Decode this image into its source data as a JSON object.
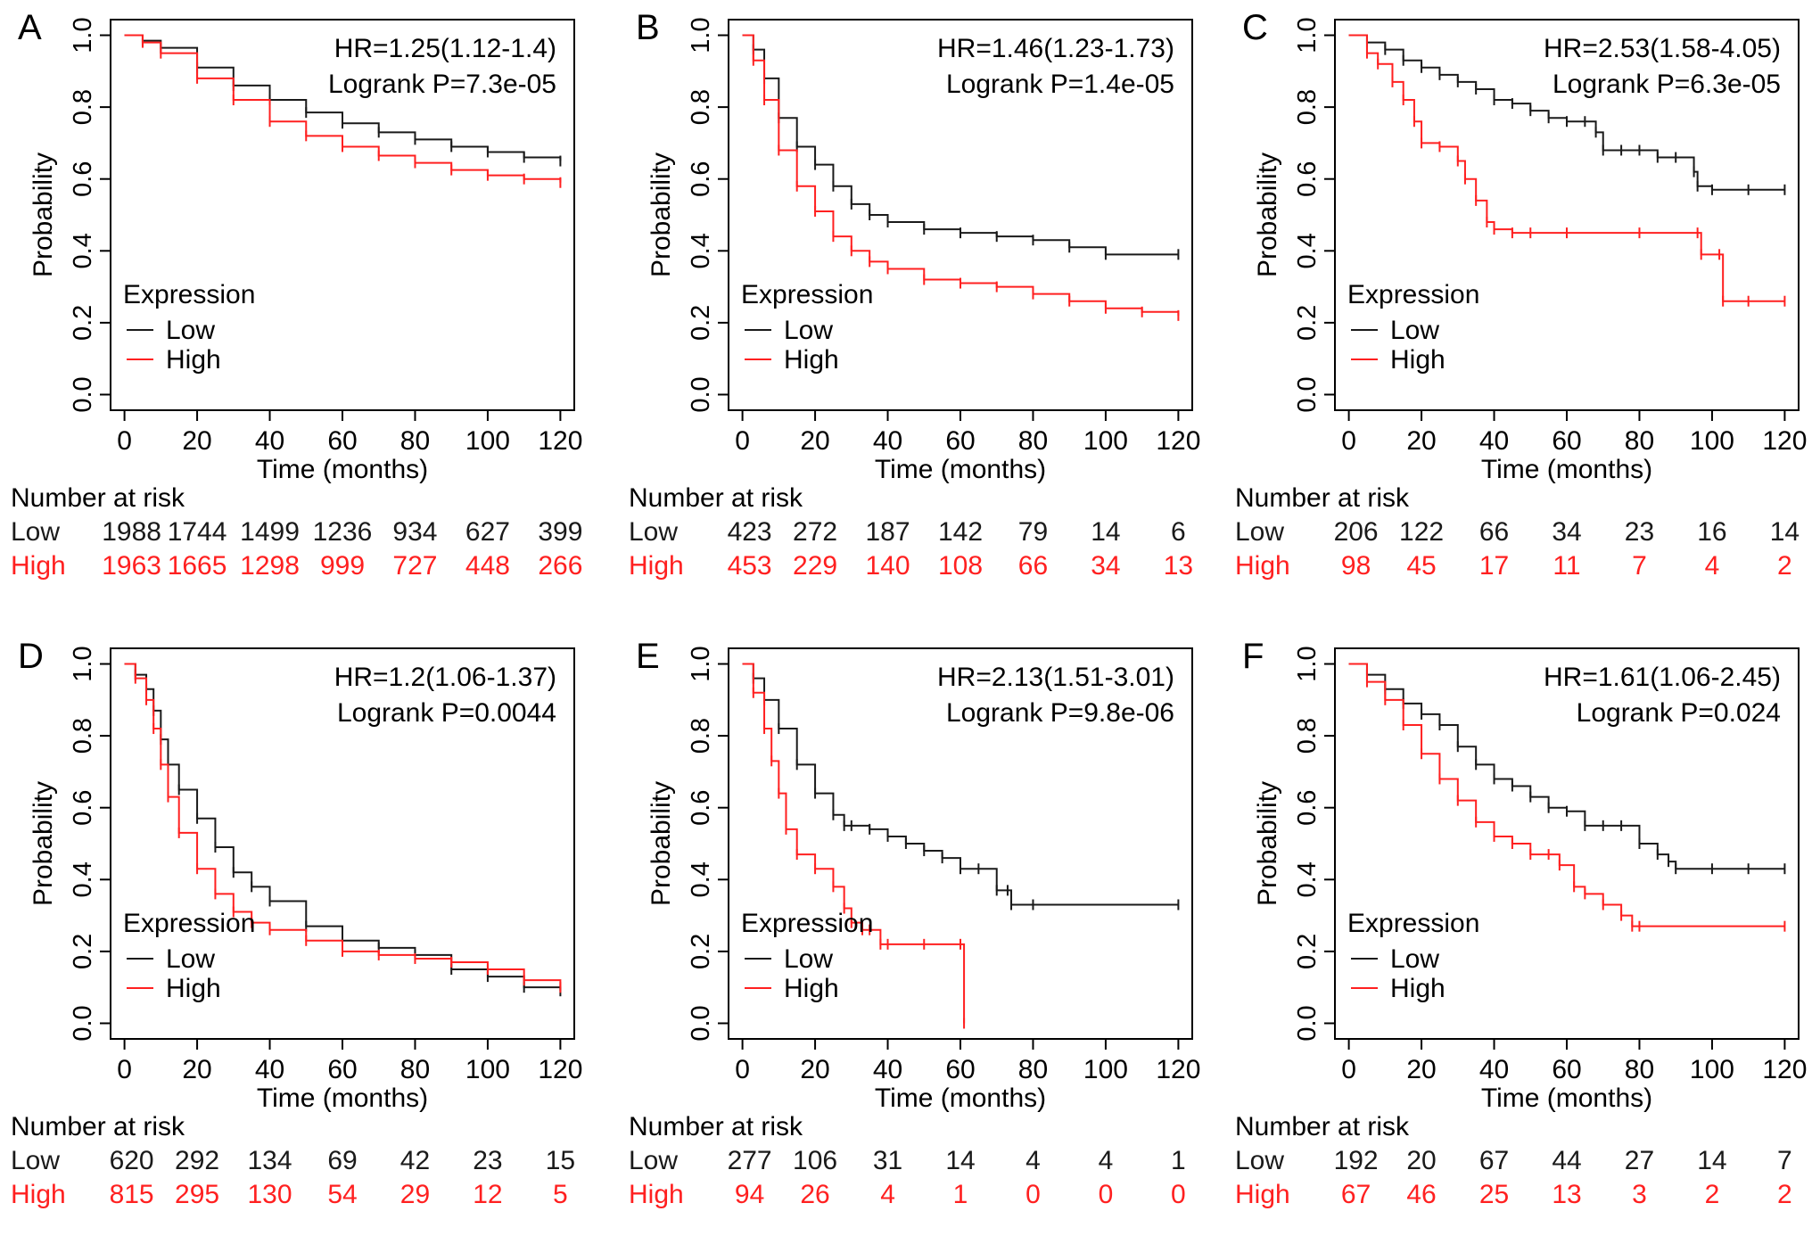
{
  "figure": {
    "colors": {
      "low": "#1a1a1a",
      "high": "#ff2020",
      "axis": "#000000"
    },
    "shared": {
      "xlabel": "Time (months)",
      "ylabel": "Probability",
      "legend_title": "Expression",
      "legend_low": "Low",
      "legend_high": "High",
      "risk_title": "Number at risk",
      "risk_low_label": "Low",
      "risk_high_label": "High"
    }
  },
  "chart_data": [
    {
      "panel": "A",
      "type": "line",
      "title": "",
      "xlabel": "Time (months)",
      "ylabel": "Probability",
      "xlim": [
        0,
        120
      ],
      "ylim": [
        0,
        1
      ],
      "xticks": [
        0,
        20,
        40,
        60,
        80,
        100,
        120
      ],
      "yticks": [
        "0.0",
        "0.2",
        "0.4",
        "0.6",
        "0.8",
        "1.0"
      ],
      "hr_text": "HR=1.25(1.12-1.4)",
      "logrank_text": "Logrank P=7.3e-05",
      "legend": {
        "title": "Expression",
        "entries": [
          "Low",
          "High"
        ],
        "placement": "bottom-left"
      },
      "series": [
        {
          "name": "Low",
          "color": "#1a1a1a",
          "x": [
            0,
            5,
            10,
            20,
            30,
            40,
            50,
            60,
            70,
            80,
            90,
            100,
            110,
            120
          ],
          "y": [
            1,
            0.985,
            0.965,
            0.91,
            0.86,
            0.82,
            0.785,
            0.755,
            0.73,
            0.71,
            0.69,
            0.675,
            0.66,
            0.65
          ]
        },
        {
          "name": "High",
          "color": "#ff2020",
          "x": [
            0,
            5,
            10,
            20,
            30,
            40,
            50,
            60,
            70,
            80,
            90,
            100,
            110,
            120
          ],
          "y": [
            1,
            0.98,
            0.95,
            0.88,
            0.82,
            0.76,
            0.72,
            0.69,
            0.665,
            0.645,
            0.625,
            0.61,
            0.6,
            0.59
          ]
        }
      ],
      "risk": {
        "low": [
          "1988",
          "1744",
          "1499",
          "1236",
          "934",
          "627",
          "399"
        ],
        "high": [
          "1963",
          "1665",
          "1298",
          "999",
          "727",
          "448",
          "266"
        ]
      }
    },
    {
      "panel": "B",
      "type": "line",
      "title": "",
      "xlabel": "Time (months)",
      "ylabel": "Probability",
      "xlim": [
        0,
        120
      ],
      "ylim": [
        0,
        1
      ],
      "xticks": [
        0,
        20,
        40,
        60,
        80,
        100,
        120
      ],
      "yticks": [
        "0.0",
        "0.2",
        "0.4",
        "0.6",
        "0.8",
        "1.0"
      ],
      "hr_text": "HR=1.46(1.23-1.73)",
      "logrank_text": "Logrank P=1.4e-05",
      "legend": {
        "title": "Expression",
        "entries": [
          "Low",
          "High"
        ],
        "placement": "bottom-left"
      },
      "series": [
        {
          "name": "Low",
          "color": "#1a1a1a",
          "x": [
            0,
            3,
            6,
            10,
            15,
            20,
            25,
            30,
            35,
            40,
            50,
            60,
            70,
            80,
            90,
            100,
            120
          ],
          "y": [
            1,
            0.96,
            0.88,
            0.77,
            0.69,
            0.64,
            0.58,
            0.53,
            0.5,
            0.48,
            0.46,
            0.45,
            0.44,
            0.43,
            0.41,
            0.39,
            0.39
          ]
        },
        {
          "name": "High",
          "color": "#ff2020",
          "x": [
            0,
            3,
            6,
            10,
            15,
            20,
            25,
            30,
            35,
            40,
            50,
            60,
            70,
            80,
            90,
            100,
            110,
            120
          ],
          "y": [
            1,
            0.93,
            0.82,
            0.68,
            0.58,
            0.51,
            0.44,
            0.4,
            0.37,
            0.35,
            0.32,
            0.31,
            0.3,
            0.28,
            0.26,
            0.24,
            0.23,
            0.22
          ]
        }
      ],
      "risk": {
        "low": [
          "423",
          "272",
          "187",
          "142",
          "79",
          "14",
          "6"
        ],
        "high": [
          "453",
          "229",
          "140",
          "108",
          "66",
          "34",
          "13"
        ]
      }
    },
    {
      "panel": "C",
      "type": "line",
      "title": "",
      "xlabel": "Time (months)",
      "ylabel": "Probability",
      "xlim": [
        0,
        120
      ],
      "ylim": [
        0,
        1
      ],
      "xticks": [
        0,
        20,
        40,
        60,
        80,
        100,
        120
      ],
      "yticks": [
        "0.0",
        "0.2",
        "0.4",
        "0.6",
        "0.8",
        "1.0"
      ],
      "hr_text": "HR=2.53(1.58-4.05)",
      "logrank_text": "Logrank P=6.3e-05",
      "legend": {
        "title": "Expression",
        "entries": [
          "Low",
          "High"
        ],
        "placement": "bottom-left"
      },
      "series": [
        {
          "name": "Low",
          "color": "#1a1a1a",
          "x": [
            0,
            5,
            10,
            15,
            20,
            25,
            30,
            35,
            40,
            45,
            50,
            55,
            60,
            65,
            68,
            70,
            75,
            80,
            85,
            90,
            95,
            96,
            100,
            110,
            120
          ],
          "y": [
            1,
            0.98,
            0.96,
            0.93,
            0.91,
            0.89,
            0.87,
            0.85,
            0.82,
            0.81,
            0.79,
            0.77,
            0.76,
            0.76,
            0.73,
            0.68,
            0.68,
            0.68,
            0.66,
            0.66,
            0.62,
            0.58,
            0.57,
            0.57,
            0.57
          ]
        },
        {
          "name": "High",
          "color": "#ff2020",
          "x": [
            0,
            5,
            8,
            12,
            15,
            18,
            20,
            25,
            30,
            32,
            35,
            38,
            40,
            45,
            50,
            60,
            80,
            96,
            97,
            102,
            103,
            110,
            120
          ],
          "y": [
            1,
            0.95,
            0.92,
            0.87,
            0.82,
            0.76,
            0.7,
            0.69,
            0.65,
            0.6,
            0.54,
            0.48,
            0.46,
            0.45,
            0.45,
            0.45,
            0.45,
            0.45,
            0.39,
            0.39,
            0.26,
            0.26,
            0.26
          ]
        }
      ],
      "risk": {
        "low": [
          "206",
          "122",
          "66",
          "34",
          "23",
          "16",
          "14"
        ],
        "high": [
          "98",
          "45",
          "17",
          "11",
          "7",
          "4",
          "2"
        ]
      }
    },
    {
      "panel": "D",
      "type": "line",
      "title": "",
      "xlabel": "Time (months)",
      "ylabel": "Probability",
      "xlim": [
        0,
        120
      ],
      "ylim": [
        0,
        1
      ],
      "xticks": [
        0,
        20,
        40,
        60,
        80,
        100,
        120
      ],
      "yticks": [
        "0.0",
        "0.2",
        "0.4",
        "0.6",
        "0.8",
        "1.0"
      ],
      "hr_text": "HR=1.2(1.06-1.37)",
      "logrank_text": "Logrank P=0.0044",
      "legend": {
        "title": "Expression",
        "entries": [
          "Low",
          "High"
        ],
        "placement": "bottom-left"
      },
      "series": [
        {
          "name": "Low",
          "color": "#1a1a1a",
          "x": [
            0,
            3,
            6,
            8,
            10,
            12,
            15,
            20,
            25,
            30,
            35,
            40,
            50,
            60,
            70,
            80,
            90,
            100,
            110,
            120
          ],
          "y": [
            1,
            0.97,
            0.93,
            0.87,
            0.79,
            0.72,
            0.65,
            0.57,
            0.49,
            0.42,
            0.38,
            0.34,
            0.27,
            0.23,
            0.21,
            0.19,
            0.15,
            0.13,
            0.1,
            0.09
          ]
        },
        {
          "name": "High",
          "color": "#ff2020",
          "x": [
            0,
            3,
            6,
            8,
            10,
            12,
            15,
            20,
            25,
            30,
            35,
            40,
            50,
            60,
            70,
            80,
            90,
            100,
            110,
            120
          ],
          "y": [
            1,
            0.96,
            0.9,
            0.82,
            0.72,
            0.63,
            0.53,
            0.43,
            0.36,
            0.31,
            0.28,
            0.26,
            0.23,
            0.2,
            0.19,
            0.18,
            0.17,
            0.15,
            0.12,
            0.1
          ]
        }
      ],
      "risk": {
        "low": [
          "620",
          "292",
          "134",
          "69",
          "42",
          "23",
          "15"
        ],
        "high": [
          "815",
          "295",
          "130",
          "54",
          "29",
          "12",
          "5"
        ]
      }
    },
    {
      "panel": "E",
      "type": "line",
      "title": "",
      "xlabel": "Time (months)",
      "ylabel": "Probability",
      "xlim": [
        0,
        120
      ],
      "ylim": [
        0,
        1
      ],
      "xticks": [
        0,
        20,
        40,
        60,
        80,
        100,
        120
      ],
      "yticks": [
        "0.0",
        "0.2",
        "0.4",
        "0.6",
        "0.8",
        "1.0"
      ],
      "hr_text": "HR=2.13(1.51-3.01)",
      "logrank_text": "Logrank P=9.8e-06",
      "legend": {
        "title": "Expression",
        "entries": [
          "Low",
          "High"
        ],
        "placement": "bottom-left"
      },
      "series": [
        {
          "name": "Low",
          "color": "#1a1a1a",
          "x": [
            0,
            3,
            6,
            10,
            15,
            20,
            25,
            28,
            30,
            35,
            40,
            45,
            50,
            55,
            60,
            65,
            70,
            73,
            74,
            80,
            120
          ],
          "y": [
            1,
            0.96,
            0.9,
            0.82,
            0.72,
            0.64,
            0.58,
            0.55,
            0.55,
            0.54,
            0.52,
            0.5,
            0.48,
            0.46,
            0.43,
            0.43,
            0.37,
            0.37,
            0.33,
            0.33,
            0.33
          ]
        },
        {
          "name": "High",
          "color": "#ff2020",
          "x": [
            0,
            3,
            6,
            8,
            10,
            12,
            15,
            20,
            25,
            28,
            30,
            33,
            35,
            38,
            40,
            50,
            60,
            61
          ],
          "y": [
            1,
            0.92,
            0.82,
            0.73,
            0.64,
            0.54,
            0.47,
            0.43,
            0.38,
            0.32,
            0.28,
            0.26,
            0.26,
            0.22,
            0.22,
            0.22,
            0.22,
            0.0
          ]
        }
      ],
      "risk": {
        "low": [
          "277",
          "106",
          "31",
          "14",
          "4",
          "4",
          "1"
        ],
        "high": [
          "94",
          "26",
          "4",
          "1",
          "0",
          "0",
          "0"
        ]
      }
    },
    {
      "panel": "F",
      "type": "line",
      "title": "",
      "xlabel": "Time (months)",
      "ylabel": "Probability",
      "xlim": [
        0,
        120
      ],
      "ylim": [
        0,
        1
      ],
      "xticks": [
        0,
        20,
        40,
        60,
        80,
        100,
        120
      ],
      "yticks": [
        "0.0",
        "0.2",
        "0.4",
        "0.6",
        "0.8",
        "1.0"
      ],
      "hr_text": "HR=1.61(1.06-2.45)",
      "logrank_text": "Logrank P=0.024",
      "legend": {
        "title": "Expression",
        "entries": [
          "Low",
          "High"
        ],
        "placement": "bottom-left"
      },
      "series": [
        {
          "name": "Low",
          "color": "#1a1a1a",
          "x": [
            0,
            5,
            10,
            15,
            20,
            25,
            30,
            35,
            40,
            45,
            50,
            55,
            60,
            65,
            70,
            75,
            80,
            85,
            88,
            90,
            100,
            110,
            120
          ],
          "y": [
            1,
            0.97,
            0.93,
            0.89,
            0.86,
            0.83,
            0.77,
            0.72,
            0.68,
            0.66,
            0.63,
            0.6,
            0.59,
            0.55,
            0.55,
            0.55,
            0.5,
            0.47,
            0.45,
            0.43,
            0.43,
            0.43,
            0.43
          ]
        },
        {
          "name": "High",
          "color": "#ff2020",
          "x": [
            0,
            5,
            10,
            15,
            20,
            25,
            30,
            35,
            40,
            45,
            50,
            55,
            58,
            62,
            65,
            70,
            75,
            78,
            80,
            120
          ],
          "y": [
            1,
            0.95,
            0.9,
            0.83,
            0.75,
            0.68,
            0.62,
            0.56,
            0.52,
            0.5,
            0.47,
            0.47,
            0.44,
            0.38,
            0.36,
            0.33,
            0.3,
            0.27,
            0.27,
            0.27
          ]
        }
      ],
      "risk": {
        "low": [
          "192",
          "20",
          "67",
          "44",
          "27",
          "14",
          "7"
        ],
        "high": [
          "67",
          "46",
          "25",
          "13",
          "3",
          "2",
          "2"
        ]
      }
    }
  ]
}
